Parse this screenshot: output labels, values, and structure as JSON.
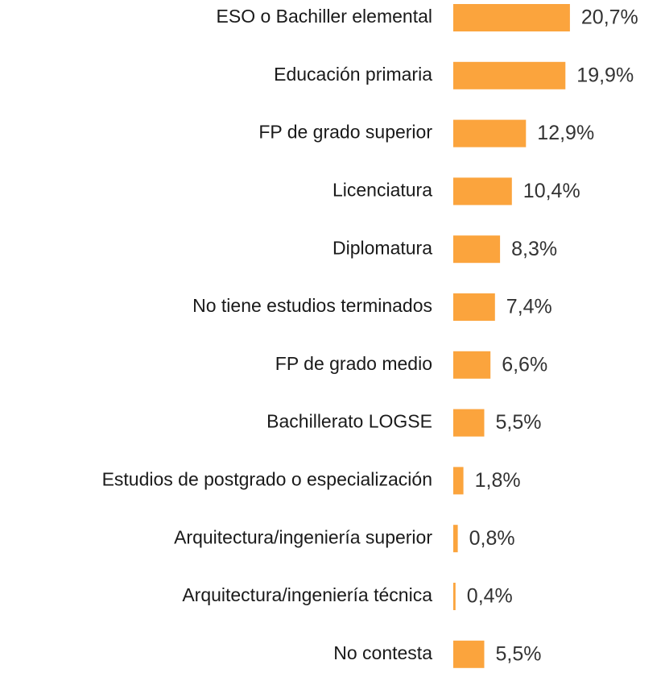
{
  "chart_data": {
    "type": "bar",
    "orientation": "horizontal",
    "categories": [
      "ESO o Bachiller elemental",
      "Educación primaria",
      "FP de grado superior",
      "Licenciatura",
      "Diplomatura",
      "No tiene estudios terminados",
      "FP de grado medio",
      "Bachillerato LOGSE",
      "Estudios de postgrado o especialización",
      "Arquitectura/ingeniería superior",
      "Arquitectura/ingeniería técnica",
      "No contesta"
    ],
    "values": [
      20.7,
      19.9,
      12.9,
      10.4,
      8.3,
      7.4,
      6.6,
      5.5,
      1.8,
      0.8,
      0.4,
      5.5
    ],
    "value_labels": [
      "20,7%",
      "19,9%",
      "12,9%",
      "10,4%",
      "8,3%",
      "7,4%",
      "6,6%",
      "5,5%",
      "1,8%",
      "0,8%",
      "0,4%",
      "5,5%"
    ],
    "color": "#fba43d"
  }
}
